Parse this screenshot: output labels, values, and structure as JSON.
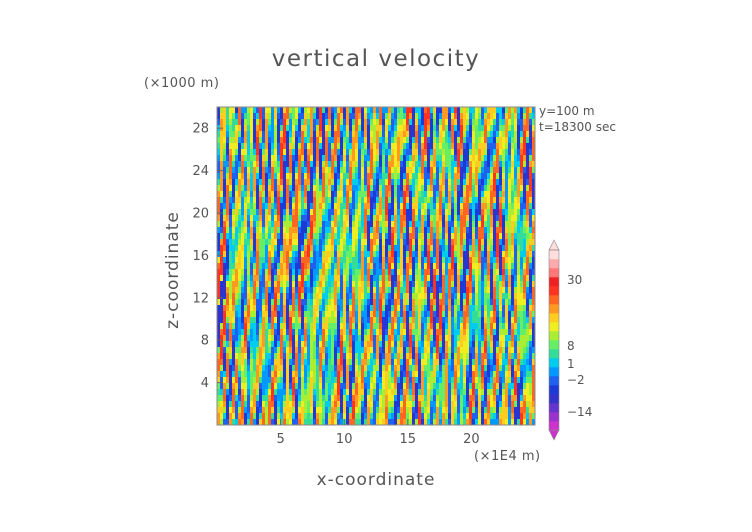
{
  "chart_data": {
    "type": "heatmap",
    "title": "vertical velocity",
    "xlabel": "x-coordinate",
    "ylabel": "z-coordinate",
    "x_unit_label": "(×1E4 m)",
    "y_unit_label": "(×1000 m)",
    "annotations": [
      "y=100 m",
      "t=18300 sec"
    ],
    "xlim": [
      0,
      25
    ],
    "ylim": [
      0,
      30
    ],
    "x_ticks": [
      5,
      10,
      15,
      20
    ],
    "y_ticks": [
      4,
      8,
      12,
      16,
      20,
      24,
      28
    ],
    "colorbar": {
      "labels": [
        "30",
        "8",
        "1",
        "−2",
        "−14"
      ],
      "label_values": [
        30,
        8,
        1,
        -2,
        -14
      ],
      "range": [
        -20,
        40
      ],
      "colors": [
        "#cc33cc",
        "#9933cc",
        "#6633cc",
        "#3333cc",
        "#1e3ad6",
        "#2060ee",
        "#0099ff",
        "#00ccee",
        "#33dd99",
        "#66ee66",
        "#aaee33",
        "#eeee22",
        "#ffcc22",
        "#ff9922",
        "#ff6622",
        "#ff3322",
        "#ee2222",
        "#ff7777",
        "#ffaaaa",
        "#ffdddd"
      ]
    },
    "field_description": "turbulent vertical velocity field with vertical streaks of updrafts and downdrafts"
  }
}
